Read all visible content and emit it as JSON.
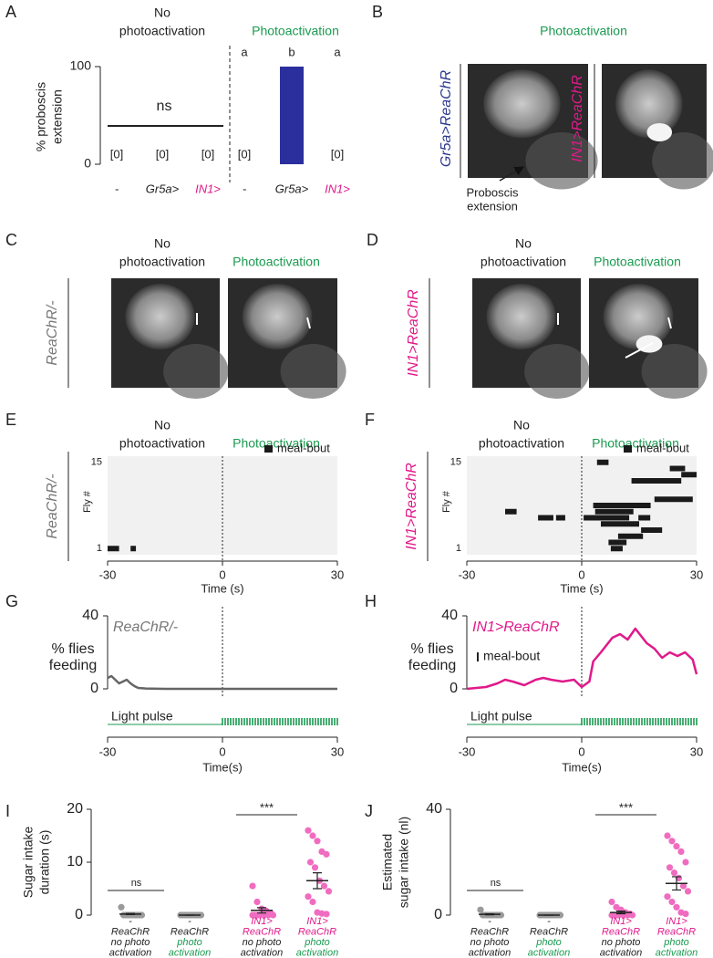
{
  "A": {
    "label": "A",
    "header_no": [
      "No",
      "photoactivation"
    ],
    "header_photo": "Photoactivation",
    "letters": [
      "a",
      "b",
      "a"
    ],
    "ylabel": [
      "% proboscis",
      "extension"
    ],
    "ylim": [
      0,
      100
    ],
    "yticks": [
      0,
      100
    ],
    "annotation": "ns",
    "categories": [
      "-",
      "Gr5a>",
      "IN1>",
      "-",
      "Gr5a>",
      "IN1>"
    ],
    "category_colors": [
      "#222222",
      "#222222",
      "#e0198a",
      "#222222",
      "#222222",
      "#e0198a"
    ],
    "values": [
      0,
      0,
      0,
      0,
      100,
      0
    ],
    "value_labels": [
      "[0]",
      "[0]",
      "[0]",
      "[0]",
      null,
      "[0]"
    ],
    "color": "#2b2f9e"
  },
  "B": {
    "label": "B",
    "header_photo": "Photoactivation",
    "genotypes": [
      "Gr5a>ReaChR",
      "IN1>ReaChR"
    ],
    "annotation": [
      "Proboscis",
      "extension"
    ]
  },
  "C": {
    "label": "C",
    "header_no": [
      "No",
      "photoactivation"
    ],
    "header_photo": "Photoactivation",
    "genotype": "ReaChR/-"
  },
  "D": {
    "label": "D",
    "header_no": [
      "No",
      "photoactivation"
    ],
    "header_photo": "Photoactivation",
    "genotype": "IN1>ReaChR"
  },
  "E": {
    "label": "E",
    "header_no": [
      "No",
      "photoactivation"
    ],
    "header_photo": "Photoactivation",
    "genotype": "ReaChR/-",
    "legend": "meal-bout",
    "ylabel": "Fly #",
    "ylim": [
      0,
      16
    ],
    "yticks": [
      1,
      15
    ],
    "xlabel": "Time (s)",
    "xlim": [
      -30,
      30
    ],
    "xticks": [
      -30,
      0,
      30
    ],
    "color": "#1a1a1a",
    "bouts": [
      {
        "fly": 1,
        "start": -30,
        "end": -27
      },
      {
        "fly": 1,
        "start": -24,
        "end": -22.6
      }
    ]
  },
  "F": {
    "label": "F",
    "header_no": [
      "No",
      "photoactivation"
    ],
    "header_photo": "Photoactivation",
    "genotype": "IN1>ReaChR",
    "legend": "meal-bout",
    "ylabel": "Fly #",
    "ylim": [
      0,
      16
    ],
    "yticks": [
      1,
      15
    ],
    "xlabel": "Time (s)",
    "xlim": [
      -30,
      30
    ],
    "xticks": [
      -30,
      0,
      30
    ],
    "color": "#1a1a1a",
    "bouts": [
      {
        "fly": 15,
        "start": 4,
        "end": 7
      },
      {
        "fly": 14,
        "start": 23,
        "end": 27
      },
      {
        "fly": 13,
        "start": 26,
        "end": 30
      },
      {
        "fly": 12,
        "start": 13,
        "end": 26
      },
      {
        "fly": 9,
        "start": 19,
        "end": 29
      },
      {
        "fly": 8,
        "start": 3,
        "end": 18
      },
      {
        "fly": 7,
        "start": -20,
        "end": -17
      },
      {
        "fly": 7,
        "start": 3.5,
        "end": 13.5
      },
      {
        "fly": 6,
        "start": -11.4,
        "end": -7.4
      },
      {
        "fly": 6,
        "start": -6.7,
        "end": -4.3
      },
      {
        "fly": 6,
        "start": 0.5,
        "end": 12.4
      },
      {
        "fly": 6,
        "start": 14.8,
        "end": 17.9
      },
      {
        "fly": 5,
        "start": 5,
        "end": 15
      },
      {
        "fly": 4,
        "start": 15.5,
        "end": 21
      },
      {
        "fly": 3,
        "start": 9.5,
        "end": 16
      },
      {
        "fly": 2,
        "start": 7,
        "end": 11.7
      },
      {
        "fly": 1,
        "start": 7.6,
        "end": 10.7
      }
    ]
  },
  "G": {
    "label": "G",
    "ylabel": [
      "% flies",
      "feeding"
    ],
    "ylim": [
      0,
      40
    ],
    "yticks": [
      0,
      40
    ],
    "xlim": [
      -30,
      30
    ],
    "xticks": [
      -30,
      0,
      30
    ],
    "xlabel": "Time(s)",
    "series_label": "ReaChR/-",
    "color": "#666666",
    "x": [
      -30,
      -29,
      -28,
      -27,
      -26,
      -25,
      -24,
      -23,
      -22,
      -20,
      -15,
      -10,
      -5,
      0,
      5,
      10,
      15,
      20,
      25,
      30
    ],
    "values": [
      6,
      7,
      5,
      3,
      4,
      5,
      3,
      1.5,
      0.5,
      0.2,
      0,
      0,
      0,
      0,
      0,
      0,
      0,
      0,
      0,
      0
    ],
    "light_label": "Light pulse",
    "light_color": "#1a9a50"
  },
  "H": {
    "label": "H",
    "ylabel": [
      "% flies",
      "feeding"
    ],
    "ylim": [
      0,
      40
    ],
    "yticks": [
      0,
      40
    ],
    "xlim": [
      -30,
      30
    ],
    "xticks": [
      -30,
      0,
      30
    ],
    "xlabel": "Time(s)",
    "series_label": "IN1>ReaChR",
    "color": "#e0198a",
    "legend": "meal-bout",
    "x": [
      -30,
      -25,
      -22,
      -20,
      -18,
      -15,
      -12,
      -10,
      -8,
      -5,
      -2,
      0,
      2,
      3,
      5,
      8,
      10,
      12,
      14,
      17,
      19,
      21,
      23,
      25,
      27,
      29,
      30
    ],
    "values": [
      0,
      1,
      3,
      5,
      4,
      2,
      5,
      6,
      5,
      4,
      5,
      1,
      4,
      15,
      20,
      28,
      30,
      27,
      33,
      25,
      22,
      17,
      20,
      18,
      20,
      16,
      8
    ],
    "light_label": "Light pulse",
    "light_color": "#1a9a50"
  },
  "I": {
    "label": "I",
    "ylabel": [
      "Sugar intake",
      "duration (s)"
    ],
    "ylim": [
      0,
      20
    ],
    "yticks": [
      0,
      10,
      20
    ],
    "annotations": [
      "ns",
      "***"
    ],
    "groups": [
      {
        "lines": [
          "-",
          "ReaChR",
          "no photo",
          "activation"
        ],
        "line_colors": [
          "#222222",
          "#222222",
          "#222222",
          "#222222"
        ],
        "color": "#9a9a9a",
        "values": [
          1.5,
          0,
          0,
          0,
          0,
          0,
          0,
          0,
          0,
          0
        ],
        "mean": 0.2,
        "sem": 0.1
      },
      {
        "lines": [
          "-",
          "ReaChR",
          "photo",
          "activation"
        ],
        "line_colors": [
          "#222222",
          "#222222",
          "#1a9a50",
          "#1a9a50"
        ],
        "color": "#9a9a9a",
        "values": [
          0,
          0,
          0,
          0,
          0,
          0,
          0,
          0,
          0,
          0
        ],
        "mean": 0,
        "sem": 0
      },
      {
        "lines": [
          "IN1>",
          "ReaChR",
          "no photo",
          "activation"
        ],
        "line_colors": [
          "#e0198a",
          "#e0198a",
          "#222222",
          "#222222"
        ],
        "color": "#f06cc0",
        "values": [
          5.5,
          2.5,
          1.2,
          0.8,
          0.4,
          0,
          0,
          0,
          0,
          0,
          0,
          0
        ],
        "mean": 0.9,
        "sem": 0.5
      },
      {
        "lines": [
          "IN1>",
          "ReaChR",
          "photo",
          "activation"
        ],
        "line_colors": [
          "#e0198a",
          "#e0198a",
          "#1a9a50",
          "#1a9a50"
        ],
        "color": "#f06cc0",
        "values": [
          16,
          15,
          14,
          12,
          11.5,
          10,
          9,
          6.5,
          5.5,
          4.5,
          3.5,
          2.5,
          0.5,
          0.3,
          0.2
        ],
        "mean": 6.5,
        "sem": 1.5
      }
    ]
  },
  "J": {
    "label": "J",
    "ylabel": [
      "Estimated",
      "sugar intake (nl)"
    ],
    "ylim": [
      0,
      40
    ],
    "yticks": [
      0,
      40
    ],
    "annotations": [
      "ns",
      "***"
    ],
    "groups": [
      {
        "lines": [
          "-",
          "ReaChR",
          "no photo",
          "activation"
        ],
        "line_colors": [
          "#222222",
          "#222222",
          "#222222",
          "#222222"
        ],
        "color": "#9a9a9a",
        "values": [
          2,
          0,
          0,
          0,
          0,
          0,
          0,
          0,
          0,
          0
        ],
        "mean": 0.3,
        "sem": 0.2
      },
      {
        "lines": [
          "-",
          "ReaChR",
          "photo",
          "activation"
        ],
        "line_colors": [
          "#222222",
          "#222222",
          "#1a9a50",
          "#1a9a50"
        ],
        "color": "#9a9a9a",
        "values": [
          0,
          0,
          0,
          0,
          0,
          0,
          0,
          0,
          0,
          0
        ],
        "mean": 0,
        "sem": 0
      },
      {
        "lines": [
          "IN1>",
          "ReaChR",
          "no photo",
          "activation"
        ],
        "line_colors": [
          "#e0198a",
          "#e0198a",
          "#222222",
          "#222222"
        ],
        "color": "#f06cc0",
        "values": [
          5,
          3,
          2,
          1,
          0.5,
          0,
          0,
          0,
          0,
          0,
          0,
          0
        ],
        "mean": 1,
        "sem": 0.5
      },
      {
        "lines": [
          "IN1>",
          "ReaChR",
          "photo",
          "activation"
        ],
        "line_colors": [
          "#e0198a",
          "#e0198a",
          "#1a9a50",
          "#1a9a50"
        ],
        "color": "#f06cc0",
        "values": [
          30,
          28,
          26,
          24,
          20,
          18,
          16,
          14,
          11,
          9,
          7,
          5,
          3,
          1,
          0.5
        ],
        "mean": 12,
        "sem": 2.5
      }
    ]
  }
}
